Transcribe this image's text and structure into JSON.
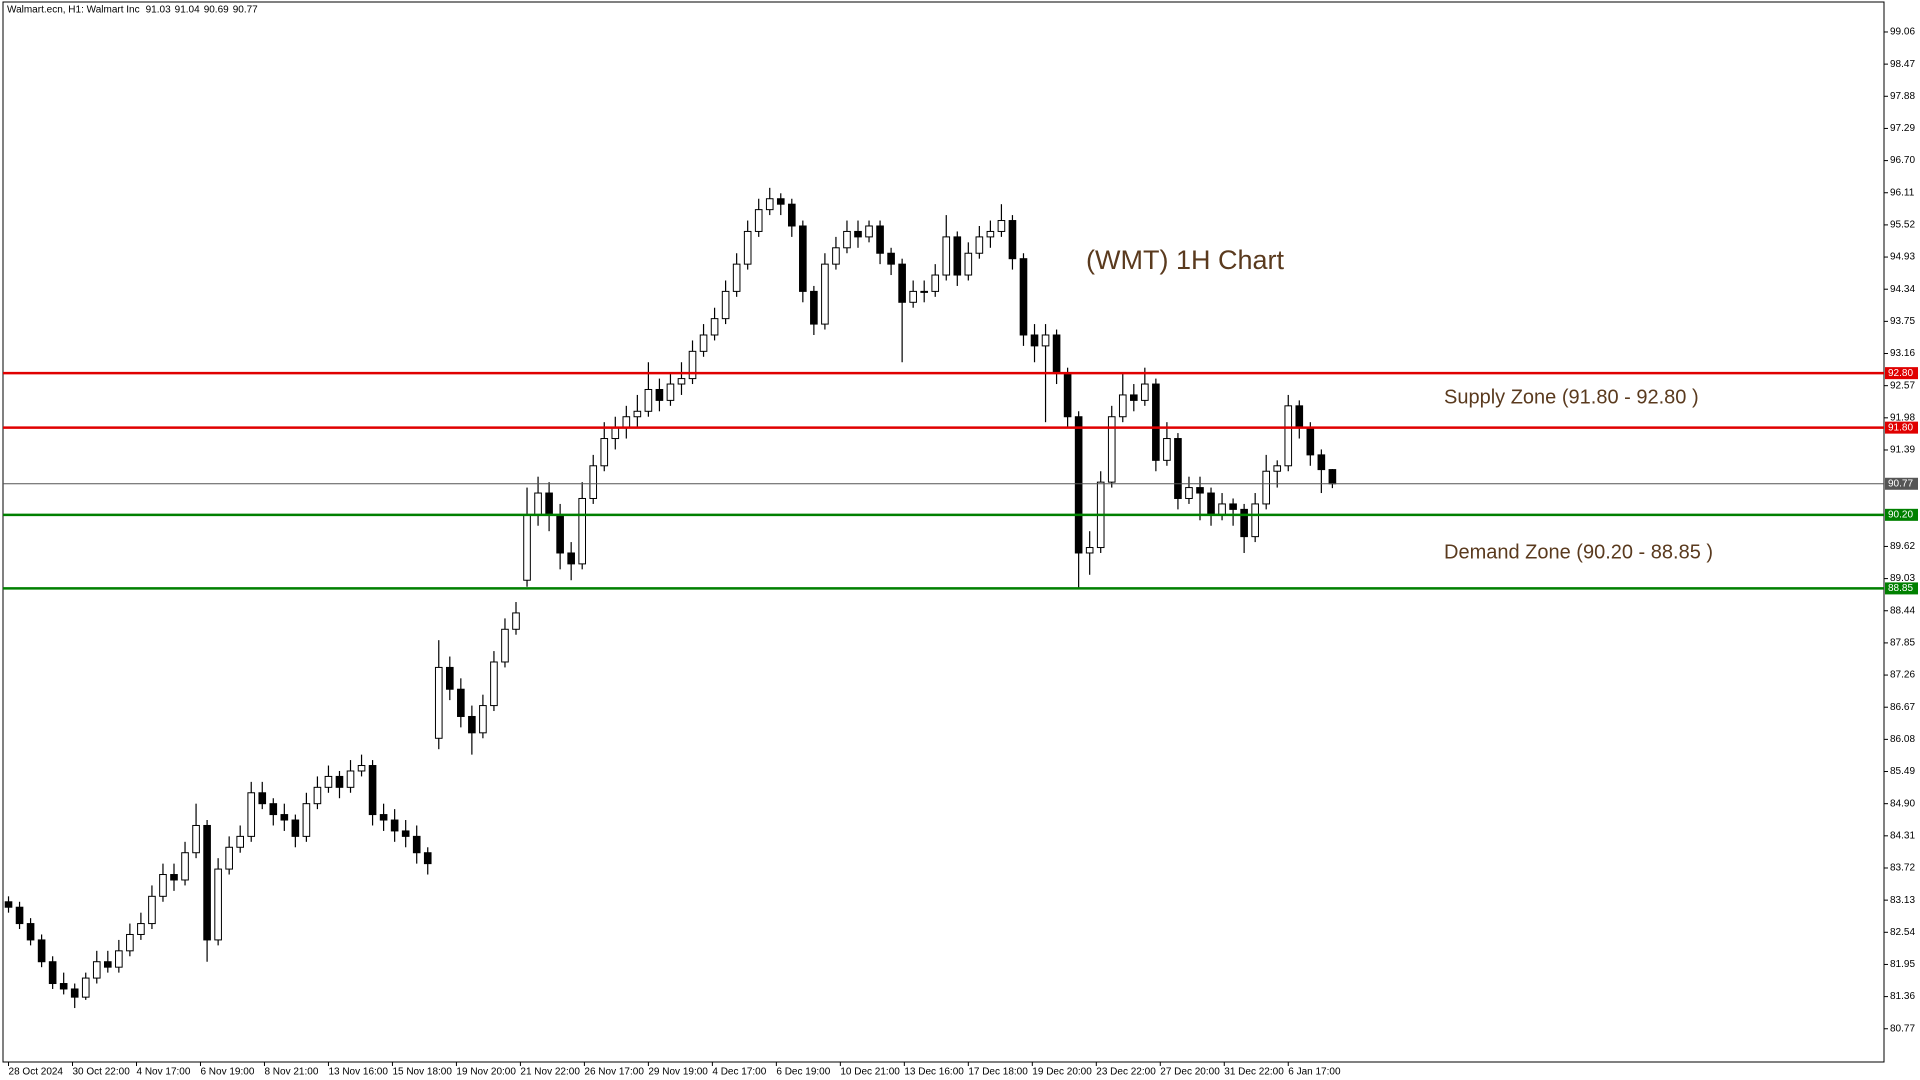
{
  "chart_data": {
    "type": "candlestick",
    "symbol": "Walmart.ecn, H1:  Walmart Inc",
    "title": "(WMT) 1H Chart",
    "annotations": [
      "Supply Zone (91.80 - 92.80 )",
      "Demand Zone (90.20 - 88.85 )"
    ],
    "bull_color": "#ffffff",
    "bear_color": "#000000",
    "ylim": [
      80.16,
      99.61
    ],
    "yticks": [
      80.77,
      81.36,
      81.95,
      82.54,
      83.13,
      83.72,
      84.31,
      {
        "value": 84.9,
        "label": "84.90"
      },
      85.49,
      86.08,
      86.67,
      87.26,
      87.85,
      88.44,
      89.03,
      89.62,
      91.39,
      91.98,
      92.57,
      93.16,
      93.75,
      94.34,
      94.93,
      95.52,
      96.11,
      {
        "value": 96.7,
        "label": "96.70"
      },
      97.29,
      97.88,
      98.47,
      99.06
    ],
    "xlim": [
      -0.5,
      170
    ],
    "xticks": [
      {
        "value": 0,
        "label": "28 Oct 2024"
      },
      {
        "value": 5.8,
        "label": "30 Oct 22:00"
      },
      {
        "value": 11.6,
        "label": "4 Nov 17:00"
      },
      {
        "value": 17.4,
        "label": "6 Nov 19:00"
      },
      {
        "value": 23.2,
        "label": "8 Nov 21:00"
      },
      {
        "value": 29,
        "label": "13 Nov 16:00"
      },
      {
        "value": 34.8,
        "label": "15 Nov 18:00"
      },
      {
        "value": 40.6,
        "label": "19 Nov 20:00"
      },
      {
        "value": 46.4,
        "label": "21 Nov 22:00"
      },
      {
        "value": 52.2,
        "label": "26 Nov 17:00"
      },
      {
        "value": 58,
        "label": "29 Nov 19:00"
      },
      {
        "value": 63.8,
        "label": "4 Dec 17:00"
      },
      {
        "value": 69.6,
        "label": "6 Dec 19:00"
      },
      {
        "value": 75.4,
        "label": "10 Dec 21:00"
      },
      {
        "value": 81.2,
        "label": "13 Dec 16:00"
      },
      {
        "value": 87,
        "label": "17 Dec 18:00"
      },
      {
        "value": 92.8,
        "label": "19 Dec 20:00"
      },
      {
        "value": 98.6,
        "label": "23 Dec 22:00"
      },
      {
        "value": 104.4,
        "label": "27 Dec 20:00"
      },
      {
        "value": 110.2,
        "label": "31 Dec 22:00"
      },
      {
        "value": 116,
        "label": "6 Jan 17:00"
      }
    ],
    "levels": [
      {
        "value": 92.8,
        "label": "92.80",
        "color": "#e00000"
      },
      {
        "value": 91.8,
        "label": "91.80",
        "color": "#e00000"
      },
      {
        "value": 90.77,
        "label": "90.77",
        "color": "#555555"
      },
      {
        "value": 90.2,
        "label": "90.20",
        "color": "#008000"
      },
      {
        "value": 88.85,
        "label": "88.85",
        "color": "#008000"
      }
    ],
    "candles": [
      [
        83.1,
        83.2,
        82.9,
        83.0
      ],
      [
        83.0,
        83.1,
        82.6,
        82.7
      ],
      [
        82.7,
        82.8,
        82.3,
        82.4
      ],
      [
        82.4,
        82.5,
        81.9,
        82.0
      ],
      [
        82.0,
        82.1,
        81.5,
        81.6
      ],
      [
        81.6,
        81.8,
        81.4,
        81.5
      ],
      [
        81.5,
        81.6,
        81.15,
        81.35
      ],
      [
        81.35,
        81.8,
        81.3,
        81.7
      ],
      [
        81.7,
        82.2,
        81.6,
        82.0
      ],
      [
        82.0,
        82.2,
        81.8,
        81.9
      ],
      [
        81.9,
        82.4,
        81.8,
        82.2
      ],
      [
        82.2,
        82.7,
        82.1,
        82.5
      ],
      [
        82.5,
        82.9,
        82.4,
        82.7
      ],
      [
        82.7,
        83.4,
        82.6,
        83.2
      ],
      [
        83.2,
        83.8,
        83.1,
        83.6
      ],
      [
        83.6,
        83.8,
        83.3,
        83.5
      ],
      [
        83.5,
        84.2,
        83.4,
        84.0
      ],
      [
        84.0,
        84.9,
        83.9,
        84.5
      ],
      [
        84.5,
        84.6,
        82.0,
        82.4
      ],
      [
        82.4,
        83.9,
        82.3,
        83.7
      ],
      [
        83.7,
        84.3,
        83.6,
        84.1
      ],
      [
        84.1,
        84.5,
        84.0,
        84.3
      ],
      [
        84.3,
        85.3,
        84.2,
        85.1
      ],
      [
        85.1,
        85.3,
        84.8,
        84.9
      ],
      [
        84.9,
        85.0,
        84.5,
        84.7
      ],
      [
        84.7,
        84.9,
        84.4,
        84.6
      ],
      [
        84.6,
        84.7,
        84.1,
        84.3
      ],
      [
        84.3,
        85.1,
        84.2,
        84.9
      ],
      [
        84.9,
        85.4,
        84.8,
        85.2
      ],
      [
        85.2,
        85.6,
        85.1,
        85.4
      ],
      [
        85.4,
        85.5,
        85.0,
        85.2
      ],
      [
        85.2,
        85.7,
        85.1,
        85.5
      ],
      [
        85.5,
        85.8,
        85.4,
        85.6
      ],
      [
        85.6,
        85.7,
        84.5,
        84.7
      ],
      [
        84.7,
        84.9,
        84.4,
        84.6
      ],
      [
        84.6,
        84.8,
        84.2,
        84.4
      ],
      [
        84.4,
        84.6,
        84.1,
        84.3
      ],
      [
        84.3,
        84.5,
        83.8,
        84.0
      ],
      [
        84.0,
        84.1,
        83.6,
        83.8
      ],
      [
        86.1,
        87.9,
        85.9,
        87.4
      ],
      [
        87.4,
        87.6,
        86.8,
        87.0
      ],
      [
        87.0,
        87.2,
        86.3,
        86.5
      ],
      [
        86.5,
        86.7,
        85.8,
        86.2
      ],
      [
        86.2,
        86.9,
        86.1,
        86.7
      ],
      [
        86.7,
        87.7,
        86.6,
        87.5
      ],
      [
        87.5,
        88.3,
        87.4,
        88.1
      ],
      [
        88.1,
        88.6,
        88.0,
        88.4
      ],
      [
        89.0,
        90.7,
        88.88,
        90.2
      ],
      [
        90.2,
        90.9,
        90.0,
        90.6
      ],
      [
        90.6,
        90.8,
        89.9,
        90.2
      ],
      [
        90.2,
        90.4,
        89.2,
        89.5
      ],
      [
        89.5,
        89.7,
        89.0,
        89.3
      ],
      [
        89.3,
        90.8,
        89.2,
        90.5
      ],
      [
        90.5,
        91.3,
        90.4,
        91.1
      ],
      [
        91.1,
        91.9,
        91.0,
        91.6
      ],
      [
        91.6,
        92.0,
        91.4,
        91.8
      ],
      [
        91.8,
        92.2,
        91.6,
        92.0
      ],
      [
        92.0,
        92.4,
        91.8,
        92.1
      ],
      [
        92.1,
        93.0,
        92.0,
        92.5
      ],
      [
        92.5,
        92.7,
        92.1,
        92.3
      ],
      [
        92.3,
        92.8,
        92.2,
        92.6
      ],
      [
        92.6,
        93.0,
        92.4,
        92.7
      ],
      [
        92.7,
        93.4,
        92.6,
        93.2
      ],
      [
        93.2,
        93.7,
        93.1,
        93.5
      ],
      [
        93.5,
        94.0,
        93.4,
        93.8
      ],
      [
        93.8,
        94.5,
        93.7,
        94.3
      ],
      [
        94.3,
        95.0,
        94.2,
        94.8
      ],
      [
        94.8,
        95.6,
        94.7,
        95.4
      ],
      [
        95.4,
        96.0,
        95.3,
        95.8
      ],
      [
        95.8,
        96.2,
        95.7,
        96.0
      ],
      [
        96.0,
        96.1,
        95.7,
        95.9
      ],
      [
        95.9,
        96.0,
        95.3,
        95.5
      ],
      [
        95.5,
        95.6,
        94.1,
        94.3
      ],
      [
        94.3,
        94.4,
        93.5,
        93.7
      ],
      [
        93.7,
        95.0,
        93.6,
        94.8
      ],
      [
        94.8,
        95.3,
        94.7,
        95.1
      ],
      [
        95.1,
        95.6,
        95.0,
        95.4
      ],
      [
        95.4,
        95.6,
        95.1,
        95.3
      ],
      [
        95.3,
        95.6,
        95.2,
        95.5
      ],
      [
        95.5,
        95.6,
        94.8,
        95.0
      ],
      [
        95.0,
        95.1,
        94.6,
        94.8
      ],
      [
        94.8,
        94.9,
        93.0,
        94.1
      ],
      [
        94.1,
        94.5,
        94.0,
        94.3
      ],
      [
        94.3,
        94.5,
        94.1,
        94.3
      ],
      [
        94.3,
        94.8,
        94.2,
        94.6
      ],
      [
        94.6,
        95.7,
        94.5,
        95.3
      ],
      [
        95.3,
        95.4,
        94.4,
        94.6
      ],
      [
        94.6,
        95.2,
        94.5,
        95.0
      ],
      [
        95.0,
        95.5,
        94.9,
        95.3
      ],
      [
        95.3,
        95.6,
        95.1,
        95.4
      ],
      [
        95.4,
        95.9,
        95.3,
        95.6
      ],
      [
        95.6,
        95.7,
        94.7,
        94.9
      ],
      [
        94.9,
        95.0,
        93.3,
        93.5
      ],
      [
        93.5,
        93.7,
        93.0,
        93.3
      ],
      [
        93.3,
        93.7,
        91.9,
        93.5
      ],
      [
        93.5,
        93.6,
        92.6,
        92.8
      ],
      [
        92.8,
        92.9,
        91.8,
        92.0
      ],
      [
        92.0,
        92.1,
        88.85,
        89.5
      ],
      [
        89.5,
        89.9,
        89.1,
        89.6
      ],
      [
        89.6,
        91.0,
        89.5,
        90.8
      ],
      [
        90.8,
        92.2,
        90.7,
        92.0
      ],
      [
        92.0,
        92.8,
        91.9,
        92.4
      ],
      [
        92.4,
        92.6,
        92.1,
        92.3
      ],
      [
        92.3,
        92.9,
        92.2,
        92.6
      ],
      [
        92.6,
        92.7,
        91.0,
        91.2
      ],
      [
        91.2,
        91.9,
        91.1,
        91.6
      ],
      [
        91.6,
        91.7,
        90.3,
        90.5
      ],
      [
        90.5,
        90.9,
        90.4,
        90.7
      ],
      [
        90.7,
        90.9,
        90.1,
        90.6
      ],
      [
        90.6,
        90.7,
        90.0,
        90.2
      ],
      [
        90.2,
        90.6,
        90.1,
        90.4
      ],
      [
        90.4,
        90.5,
        90.0,
        90.3
      ],
      [
        90.3,
        90.4,
        89.5,
        89.8
      ],
      [
        89.8,
        90.6,
        89.7,
        90.4
      ],
      [
        90.4,
        91.3,
        90.3,
        91.0
      ],
      [
        91.0,
        91.2,
        90.7,
        91.1
      ],
      [
        91.1,
        92.4,
        91.0,
        92.2
      ],
      [
        92.2,
        92.3,
        91.6,
        91.8
      ],
      [
        91.8,
        91.9,
        91.1,
        91.3
      ],
      [
        91.3,
        91.4,
        90.6,
        91.03
      ],
      [
        91.03,
        91.04,
        90.69,
        90.77
      ]
    ]
  }
}
